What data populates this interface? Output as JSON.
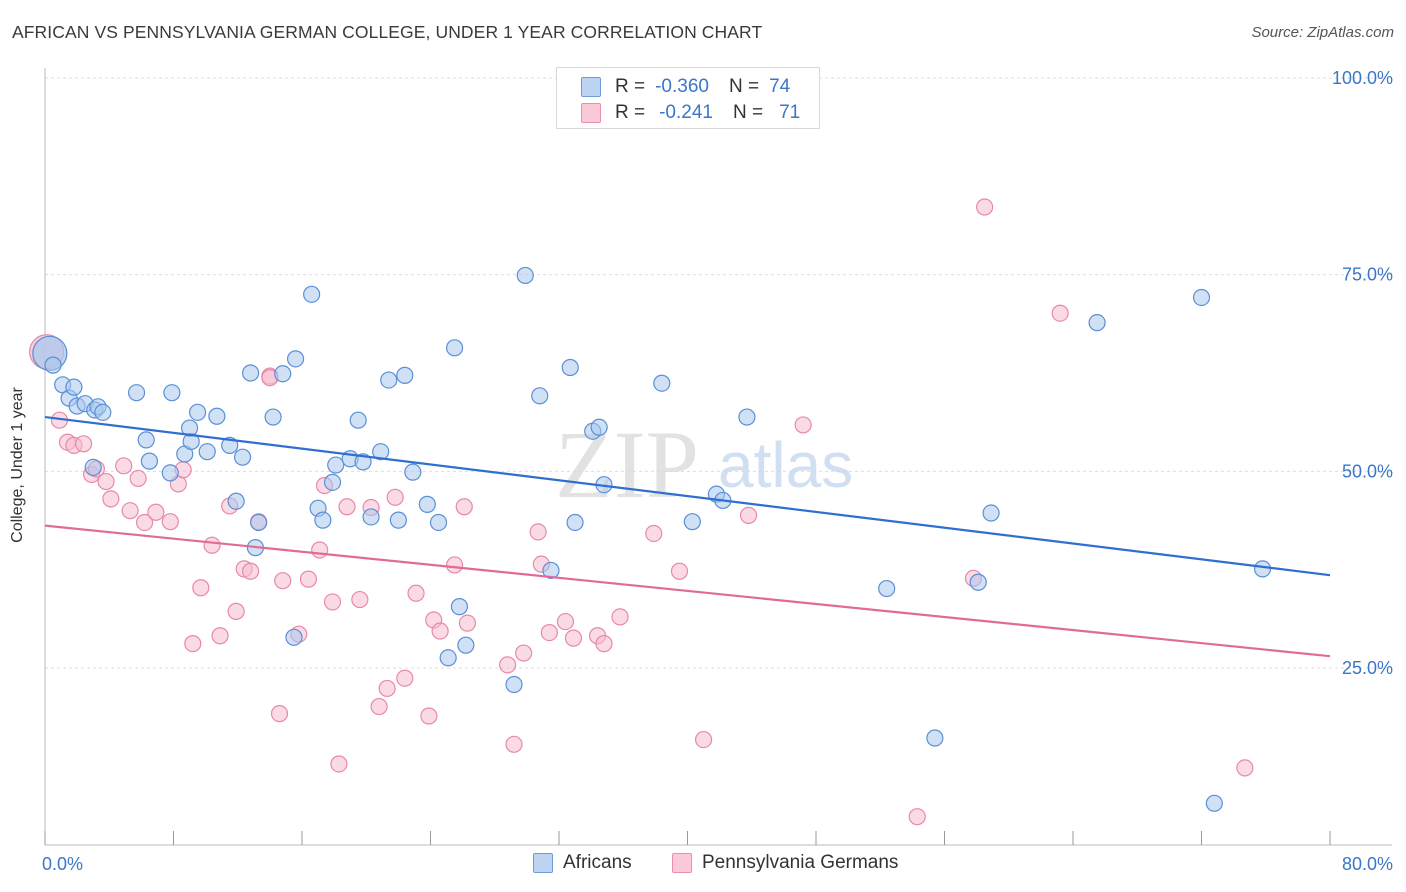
{
  "header": {
    "title": "AFRICAN VS PENNSYLVANIA GERMAN COLLEGE, UNDER 1 YEAR CORRELATION CHART",
    "source": "Source: ZipAtlas.com"
  },
  "legend": {
    "rows": [
      {
        "r_label": "R =",
        "r_value": "-0.360",
        "n_label": "N =",
        "n_value": "74"
      },
      {
        "r_label": "R =",
        "r_value": "-0.241",
        "n_label": "N =",
        "n_value": "71"
      }
    ]
  },
  "watermark": {
    "zip": "ZIP",
    "atlas": "atlas"
  },
  "colors": {
    "africans_fill": "#a9c8ef",
    "africans_stroke": "#5a8fd6",
    "africans_line": "#2f6fcf",
    "pg_fill": "#f6bcd0",
    "pg_stroke": "#e889a8",
    "pg_line": "#e06b97",
    "axis_text": "#3b76c8",
    "grid": "#dddddd"
  },
  "chart_data": {
    "type": "scatter",
    "title": "AFRICAN VS PENNSYLVANIA GERMAN COLLEGE, UNDER 1 YEAR CORRELATION CHART",
    "xlabel": "",
    "ylabel": "College, Under 1 year",
    "xlim": [
      0,
      80
    ],
    "ylim": [
      2.5,
      100
    ],
    "x_tick_labels": [
      "0.0%",
      "80.0%"
    ],
    "y_tick_labels": [
      "100.0%",
      "75.0%",
      "50.0%",
      "25.0%"
    ],
    "y_ticks": [
      100,
      75,
      50,
      25
    ],
    "grid": true,
    "legend_position": "bottom-center",
    "series": [
      {
        "name": "Africans",
        "r": -0.36,
        "n": 74,
        "trend": {
          "x": [
            0,
            80
          ],
          "y": [
            56.9,
            36.8
          ]
        },
        "points": [
          [
            0.3,
            65
          ],
          [
            0.5,
            63.5
          ],
          [
            1.1,
            61
          ],
          [
            1.5,
            59.3
          ],
          [
            1.8,
            60.7
          ],
          [
            2.0,
            58.3
          ],
          [
            2.5,
            58.6
          ],
          [
            3.1,
            57.8
          ],
          [
            3.3,
            58.2
          ],
          [
            3.6,
            57.5
          ],
          [
            5.7,
            60
          ],
          [
            6.3,
            54
          ],
          [
            6.5,
            51.3
          ],
          [
            7.9,
            60
          ],
          [
            7.8,
            49.8
          ],
          [
            8.7,
            52.2
          ],
          [
            9.1,
            53.8
          ],
          [
            9.5,
            57.5
          ],
          [
            10.1,
            52.5
          ],
          [
            10.7,
            57
          ],
          [
            11.5,
            53.3
          ],
          [
            11.9,
            46.2
          ],
          [
            12.3,
            51.8
          ],
          [
            12.8,
            62.5
          ],
          [
            13.1,
            40.3
          ],
          [
            13.3,
            43.5
          ],
          [
            14.2,
            56.9
          ],
          [
            14.8,
            62.4
          ],
          [
            15.6,
            64.3
          ],
          [
            15.5,
            28.9
          ],
          [
            16.6,
            72.5
          ],
          [
            17.0,
            45.3
          ],
          [
            17.3,
            43.8
          ],
          [
            17.9,
            48.6
          ],
          [
            18.1,
            50.8
          ],
          [
            19.0,
            51.6
          ],
          [
            19.5,
            56.5
          ],
          [
            19.8,
            51.2
          ],
          [
            20.3,
            44.2
          ],
          [
            20.9,
            52.5
          ],
          [
            21.4,
            61.6
          ],
          [
            22.0,
            43.8
          ],
          [
            22.4,
            62.2
          ],
          [
            22.9,
            49.9
          ],
          [
            23.8,
            45.8
          ],
          [
            24.5,
            43.5
          ],
          [
            25.5,
            65.7
          ],
          [
            25.1,
            26.3
          ],
          [
            25.8,
            32.8
          ],
          [
            26.2,
            27.9
          ],
          [
            29.2,
            22.9
          ],
          [
            29.9,
            74.9
          ],
          [
            30.8,
            59.6
          ],
          [
            31.5,
            37.4
          ],
          [
            32.7,
            63.2
          ],
          [
            33.0,
            43.5
          ],
          [
            34.1,
            55.1
          ],
          [
            34.5,
            55.6
          ],
          [
            34.8,
            48.3
          ],
          [
            38.4,
            61.2
          ],
          [
            40.3,
            43.6
          ],
          [
            41.8,
            47.1
          ],
          [
            42.2,
            46.3
          ],
          [
            43.7,
            56.9
          ],
          [
            52.4,
            35.1
          ],
          [
            55.4,
            16.1
          ],
          [
            58.1,
            35.9
          ],
          [
            58.9,
            44.7
          ],
          [
            65.5,
            68.9
          ],
          [
            72.0,
            72.1
          ],
          [
            72.8,
            7.8
          ],
          [
            75.8,
            37.6
          ],
          [
            3.0,
            50.5
          ],
          [
            9.0,
            55.5
          ]
        ]
      },
      {
        "name": "Pennsylvania Germans",
        "r": -0.241,
        "n": 71,
        "trend": {
          "x": [
            0,
            80
          ],
          "y": [
            43.1,
            26.5
          ]
        },
        "points": [
          [
            0.1,
            65.2
          ],
          [
            0.9,
            56.5
          ],
          [
            1.4,
            53.7
          ],
          [
            1.8,
            53.3
          ],
          [
            2.4,
            53.5
          ],
          [
            2.9,
            49.6
          ],
          [
            3.2,
            50.3
          ],
          [
            3.8,
            48.7
          ],
          [
            4.1,
            46.5
          ],
          [
            4.9,
            50.7
          ],
          [
            5.3,
            45
          ],
          [
            5.8,
            49.1
          ],
          [
            6.2,
            43.5
          ],
          [
            6.9,
            44.8
          ],
          [
            7.8,
            43.6
          ],
          [
            8.3,
            48.4
          ],
          [
            8.6,
            50.2
          ],
          [
            9.2,
            28.1
          ],
          [
            9.7,
            35.2
          ],
          [
            10.4,
            40.6
          ],
          [
            10.9,
            29.1
          ],
          [
            11.5,
            45.6
          ],
          [
            11.9,
            32.2
          ],
          [
            12.4,
            37.6
          ],
          [
            12.8,
            37.3
          ],
          [
            13.3,
            43.6
          ],
          [
            14.0,
            62.1
          ],
          [
            14.6,
            19.2
          ],
          [
            14.8,
            36.1
          ],
          [
            15.8,
            29.3
          ],
          [
            16.4,
            36.3
          ],
          [
            17.1,
            40
          ],
          [
            17.4,
            48.2
          ],
          [
            17.9,
            33.4
          ],
          [
            18.3,
            12.8
          ],
          [
            18.8,
            45.5
          ],
          [
            19.6,
            33.7
          ],
          [
            20.3,
            45.4
          ],
          [
            20.8,
            20.1
          ],
          [
            21.3,
            22.4
          ],
          [
            21.8,
            46.7
          ],
          [
            22.4,
            23.7
          ],
          [
            23.1,
            34.5
          ],
          [
            23.9,
            18.9
          ],
          [
            24.2,
            31.1
          ],
          [
            24.6,
            29.7
          ],
          [
            25.5,
            38.1
          ],
          [
            26.1,
            45.5
          ],
          [
            26.3,
            30.7
          ],
          [
            28.8,
            25.4
          ],
          [
            29.2,
            15.3
          ],
          [
            29.8,
            26.9
          ],
          [
            30.7,
            42.3
          ],
          [
            30.9,
            38.2
          ],
          [
            31.4,
            29.5
          ],
          [
            32.4,
            30.9
          ],
          [
            32.9,
            28.8
          ],
          [
            34.4,
            29.1
          ],
          [
            34.8,
            28.1
          ],
          [
            35.8,
            31.5
          ],
          [
            37.9,
            42.1
          ],
          [
            39.5,
            37.3
          ],
          [
            41.0,
            15.9
          ],
          [
            43.8,
            44.4
          ],
          [
            47.2,
            55.9
          ],
          [
            54.3,
            6.1
          ],
          [
            57.8,
            36.4
          ],
          [
            58.5,
            83.6
          ],
          [
            63.2,
            70.1
          ],
          [
            74.7,
            12.3
          ],
          [
            14.0,
            61.9
          ]
        ]
      }
    ]
  },
  "bottom_legend": [
    {
      "label": "Africans"
    },
    {
      "label": "Pennsylvania Germans"
    }
  ]
}
